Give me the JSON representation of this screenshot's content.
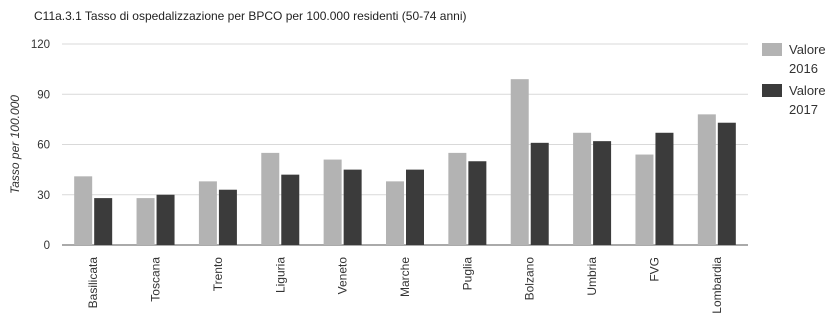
{
  "chart_data": {
    "type": "bar",
    "title": "C11a.3.1 Tasso di ospedalizzazione per BPCO per 100.000 residenti (50-74 anni)",
    "ylabel": "Tasso per 100.000",
    "xlabel": "",
    "ylim": [
      0,
      120
    ],
    "yticks": [
      0,
      30,
      60,
      90,
      120
    ],
    "grid": true,
    "legend_position": "right",
    "categories": [
      "Basilicata",
      "Toscana",
      "Trento",
      "Liguria",
      "Veneto",
      "Marche",
      "Puglia",
      "Bolzano",
      "Umbria",
      "FVG",
      "Lombardia"
    ],
    "series": [
      {
        "name": "Valore 2016",
        "legend_lines": [
          "Valore",
          "2016"
        ],
        "color": "#b3b3b3",
        "values": [
          41,
          28,
          38,
          55,
          51,
          38,
          55,
          99,
          67,
          54,
          78
        ]
      },
      {
        "name": "Valore 2017",
        "legend_lines": [
          "Valore",
          "2017"
        ],
        "color": "#3b3b3b",
        "values": [
          28,
          30,
          33,
          42,
          45,
          45,
          50,
          61,
          62,
          67,
          73
        ]
      }
    ]
  }
}
